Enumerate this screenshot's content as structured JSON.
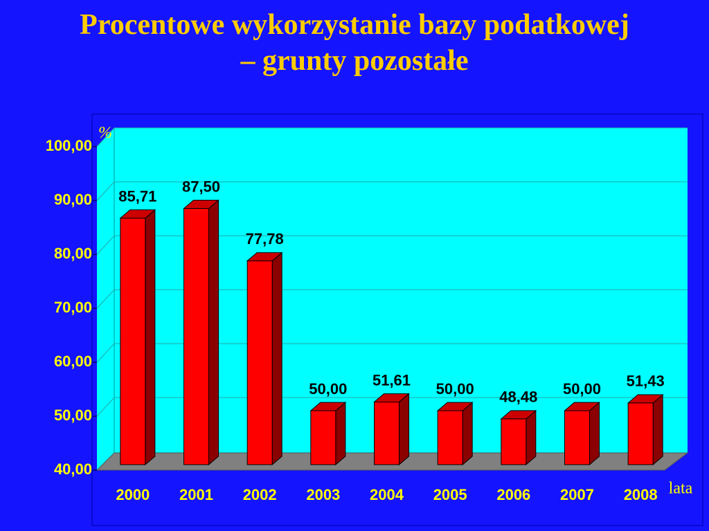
{
  "chart_data": {
    "type": "bar3d",
    "title": "Procentowe wykorzystanie bazy podatkowej – grunty pozostałe",
    "y_label": "%",
    "x_label": "lata",
    "categories": [
      "2000",
      "2001",
      "2002",
      "2003",
      "2004",
      "2005",
      "2006",
      "2007",
      "2008"
    ],
    "values": [
      85.71,
      87.5,
      77.78,
      50,
      51.61,
      50,
      48.48,
      50,
      51.43
    ],
    "value_labels": [
      "85,71",
      "87,50",
      "77,78",
      "50,00",
      "51,61",
      "50,00",
      "48,48",
      "50,00",
      "51,43"
    ],
    "color": "#ff0000",
    "ylim": [
      40,
      100
    ],
    "yticks": [
      {
        "value": 40,
        "label": "40,00"
      },
      {
        "value": 50,
        "label": "50,00"
      },
      {
        "value": 60,
        "label": "60,00"
      },
      {
        "value": 70,
        "label": "70,00"
      },
      {
        "value": 80,
        "label": "80,00"
      },
      {
        "value": 90,
        "label": "90,00"
      },
      {
        "value": 100,
        "label": "100,00"
      }
    ],
    "grid": true
  }
}
